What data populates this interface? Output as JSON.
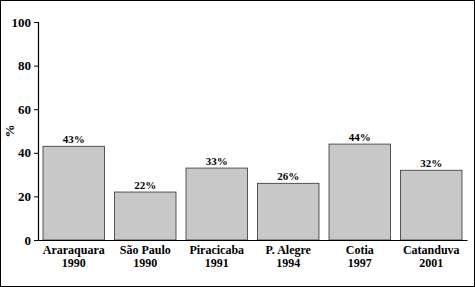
{
  "chart_data": {
    "type": "bar",
    "y_label": "%",
    "categories": [
      "Araraquara\n1990",
      "São Paulo\n1990",
      "Piracicaba\n1991",
      "P. Alegre\n1994",
      "Cotia\n1997",
      "Catanduva\n2001"
    ],
    "values": [
      43,
      22,
      33,
      26,
      44,
      32
    ],
    "value_labels": [
      "43%",
      "22%",
      "33%",
      "26%",
      "44%",
      "32%"
    ],
    "data_labels": true,
    "color": "#c8c8c8",
    "ylim": [
      0,
      100
    ],
    "yticks": [
      0,
      20,
      40,
      60,
      80,
      100
    ],
    "grid": false
  }
}
